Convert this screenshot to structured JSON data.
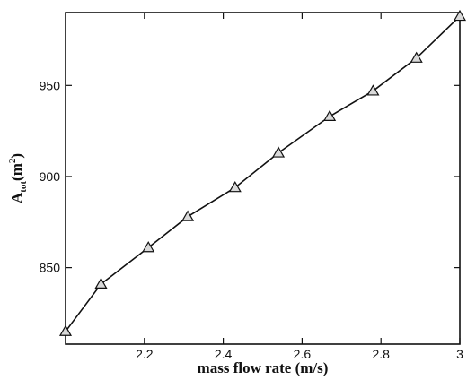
{
  "chart_data": {
    "type": "line",
    "title": "",
    "xlabel": "mass flow rate (m/s)",
    "ylabel": {
      "base": "A",
      "subscript": "tot",
      "unit_open": "(m",
      "superscript": "2",
      "unit_close": ")"
    },
    "xlim": [
      2.0,
      3.0
    ],
    "ylim": [
      808,
      990
    ],
    "x_ticks": [
      2.2,
      2.4,
      2.6,
      2.8,
      3.0
    ],
    "x_tick_labels": [
      "2.2",
      "2.4",
      "2.6",
      "2.8",
      "3"
    ],
    "y_ticks": [
      850,
      900,
      950
    ],
    "y_tick_labels": [
      "850",
      "900",
      "950"
    ],
    "grid": false,
    "marker": "triangle",
    "series": [
      {
        "x": [
          2.0,
          2.09,
          2.21,
          2.31,
          2.43,
          2.54,
          2.67,
          2.78,
          2.89,
          3.0
        ],
        "y": [
          815,
          841,
          861,
          878,
          894,
          913,
          933,
          947,
          965,
          988
        ]
      }
    ]
  }
}
